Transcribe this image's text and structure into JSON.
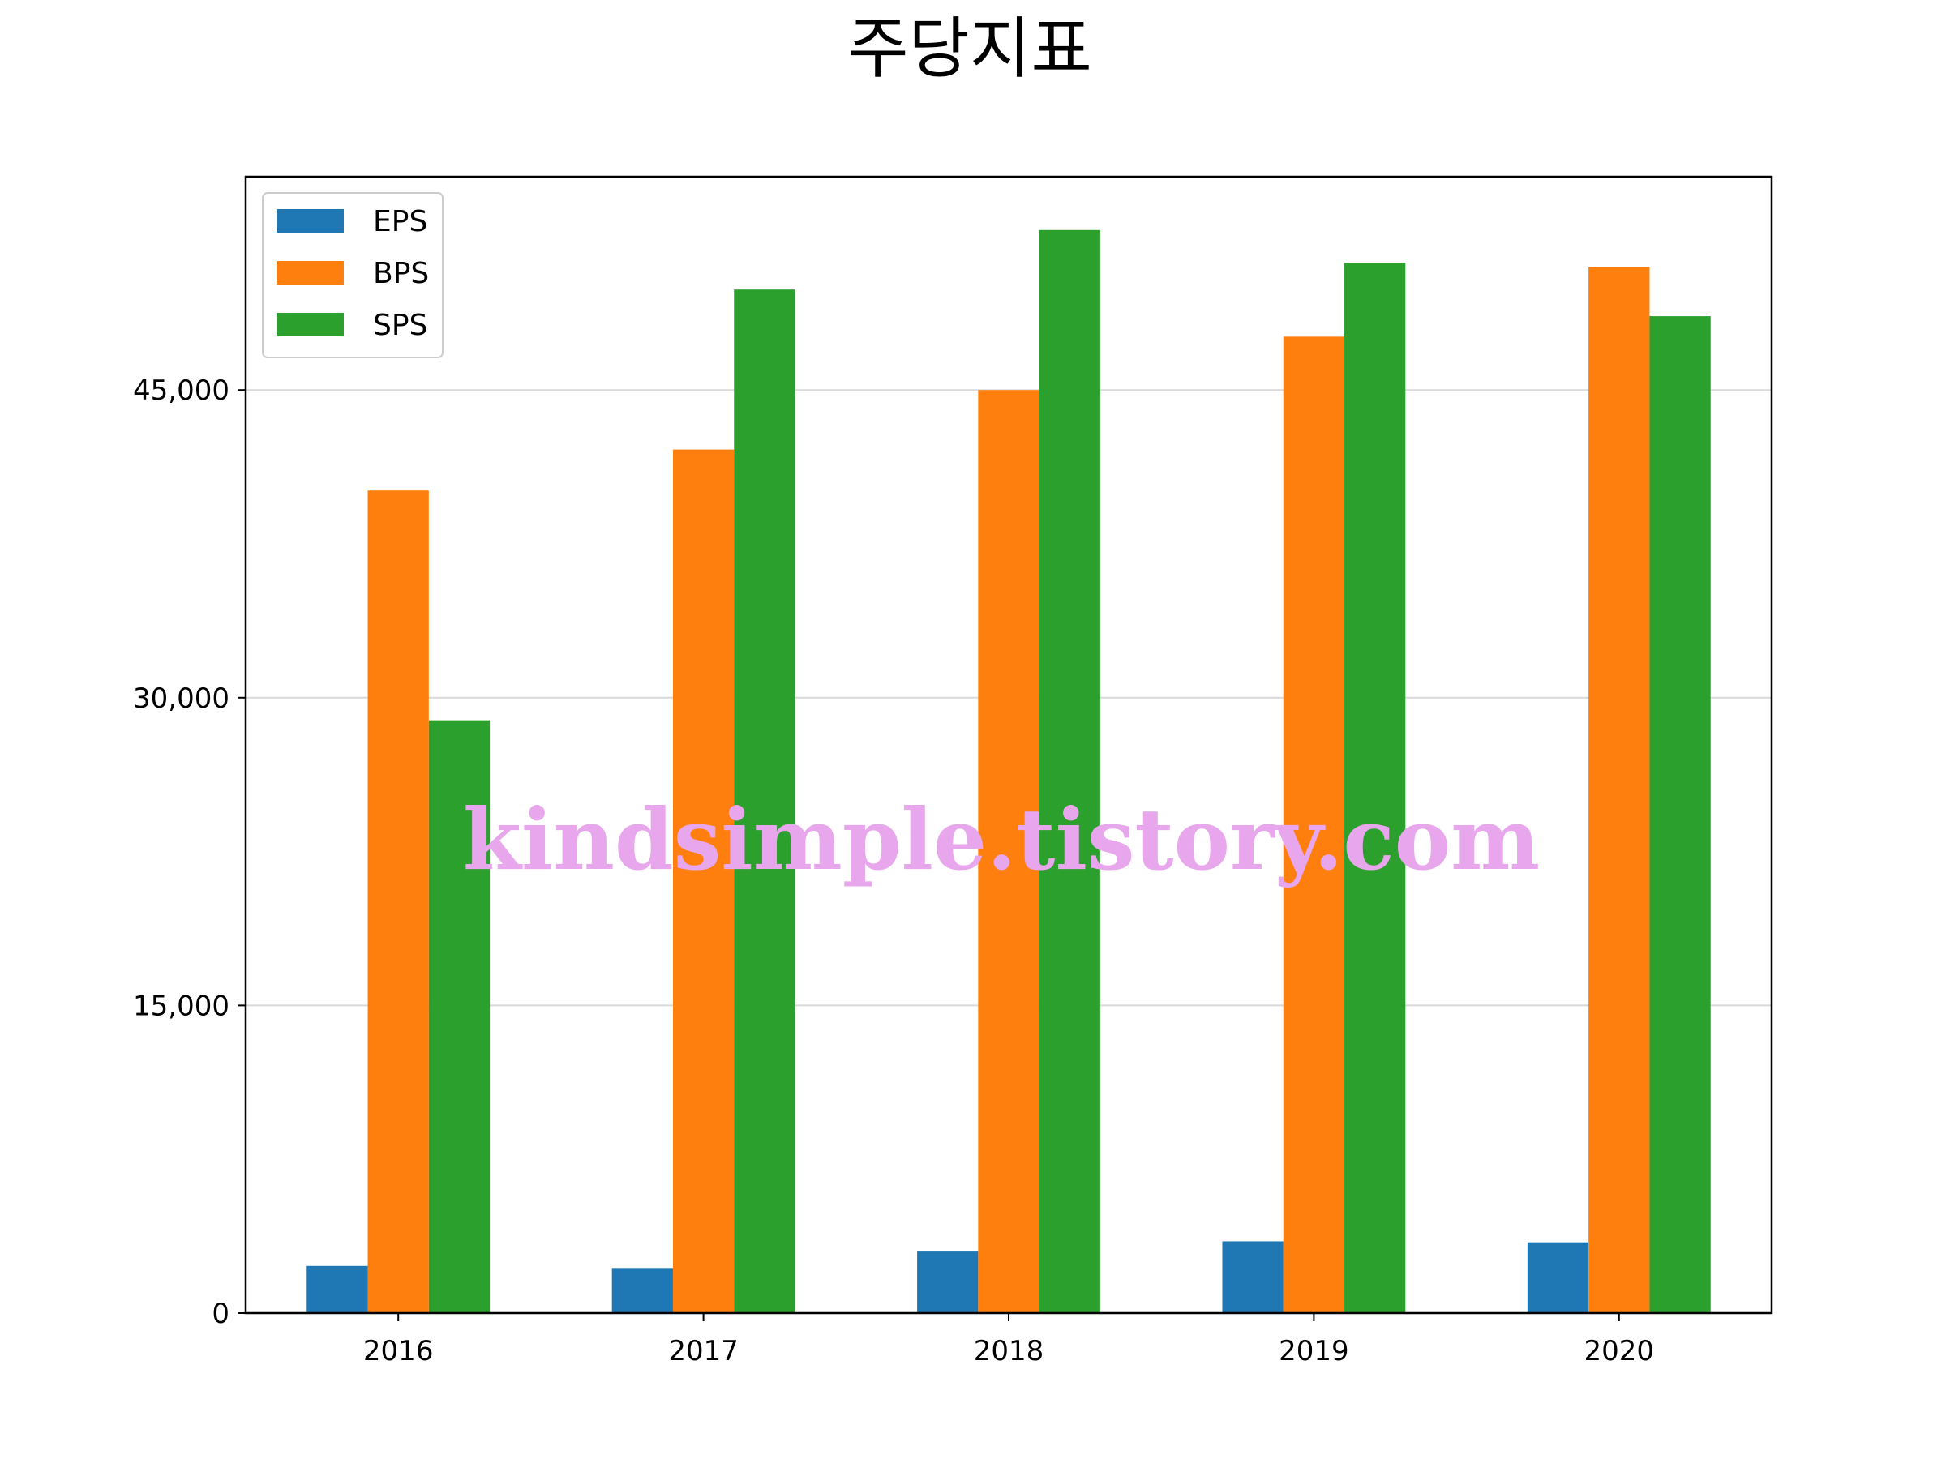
{
  "chart_data": {
    "type": "bar",
    "title": "주당지표",
    "xlabel": "",
    "ylabel": "",
    "categories": [
      "2016",
      "2017",
      "2018",
      "2019",
      "2020"
    ],
    "series": [
      {
        "name": "EPS",
        "color": "#1f77b4",
        "values": [
          2300,
          2200,
          3000,
          3500,
          3450
        ]
      },
      {
        "name": "BPS",
        "color": "#ff7f0e",
        "values": [
          40100,
          42100,
          45000,
          47600,
          51000
        ]
      },
      {
        "name": "SPS",
        "color": "#2ca02c",
        "values": [
          28900,
          49900,
          52800,
          51200,
          48600
        ]
      }
    ],
    "ylim": [
      0,
      55400
    ],
    "yticks": [
      0,
      15000,
      30000,
      45000
    ],
    "ytick_labels": [
      "0",
      "15,000",
      "30,000",
      "45,000"
    ],
    "grid": "horizontal",
    "legend_position": "upper-left"
  },
  "watermark": "kindsimple.tistory.com"
}
